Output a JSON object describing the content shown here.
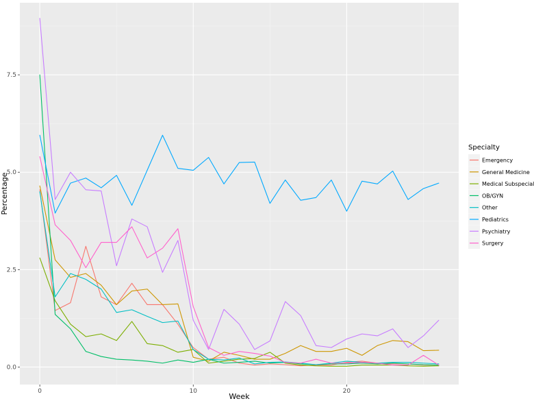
{
  "chart_data": {
    "type": "line",
    "xlabel": "Week",
    "ylabel": "Percentage",
    "xlim": [
      -1.3,
      27.3
    ],
    "ylim": [
      -0.45,
      9.35
    ],
    "x_ticks": [
      0,
      10,
      20
    ],
    "y_ticks": [
      0.0,
      2.5,
      5.0,
      7.5
    ],
    "y_tick_labels": [
      "0.0",
      "2.5",
      "5.0",
      "7.5"
    ],
    "x_tick_labels": [
      "0",
      "10",
      "20"
    ],
    "grid": true,
    "legend_title": "Specialty",
    "legend_position": "right",
    "x": [
      0,
      1,
      2,
      3,
      4,
      5,
      6,
      7,
      8,
      9,
      10,
      11,
      12,
      13,
      14,
      15,
      16,
      17,
      18,
      19,
      20,
      21,
      22,
      23,
      24,
      25,
      26
    ],
    "series": [
      {
        "name": "Emergency",
        "color": "#F8766D",
        "values": [
          4.55,
          1.45,
          1.65,
          3.1,
          1.8,
          1.6,
          2.15,
          1.6,
          1.6,
          1.1,
          0.5,
          0.2,
          0.25,
          0.1,
          0.05,
          0.08,
          0.06,
          0.03,
          0.05,
          0.05,
          0.12,
          0.15,
          0.1,
          0.08,
          0.08,
          0.05,
          0.05
        ]
      },
      {
        "name": "General Medicine",
        "color": "#CD9600",
        "values": [
          4.65,
          2.75,
          2.3,
          2.4,
          2.1,
          1.6,
          1.95,
          2.0,
          1.6,
          1.62,
          0.25,
          0.15,
          0.38,
          0.3,
          0.2,
          0.2,
          0.35,
          0.55,
          0.4,
          0.4,
          0.48,
          0.3,
          0.55,
          0.68,
          0.65,
          0.42,
          0.43
        ]
      },
      {
        "name": "Medical Subspecialty",
        "color": "#7CAE00",
        "values": [
          2.8,
          1.7,
          1.1,
          0.78,
          0.85,
          0.68,
          1.17,
          0.6,
          0.55,
          0.38,
          0.45,
          0.1,
          0.15,
          0.2,
          0.22,
          0.38,
          0.1,
          0.05,
          0.03,
          0.02,
          0.02,
          0.05,
          0.05,
          0.05,
          0.03,
          0.02,
          0.03
        ]
      },
      {
        "name": "OB/GYN",
        "color": "#00BE67",
        "values": [
          7.5,
          1.35,
          0.98,
          0.4,
          0.27,
          0.2,
          0.18,
          0.15,
          0.1,
          0.18,
          0.12,
          0.2,
          0.1,
          0.12,
          0.15,
          0.1,
          0.12,
          0.08,
          0.06,
          0.08,
          0.08,
          0.1,
          0.08,
          0.1,
          0.08,
          0.06,
          0.05
        ]
      },
      {
        "name": "Other",
        "color": "#00BFC4",
        "values": [
          4.5,
          1.8,
          2.4,
          2.25,
          2.0,
          1.4,
          1.47,
          1.3,
          1.14,
          1.18,
          0.45,
          0.2,
          0.18,
          0.23,
          0.08,
          0.12,
          0.13,
          0.1,
          0.06,
          0.1,
          0.15,
          0.12,
          0.1,
          0.12,
          0.12,
          0.1,
          0.08
        ]
      },
      {
        "name": "Pediatrics",
        "color": "#00A9FF",
        "values": [
          5.95,
          3.95,
          4.72,
          4.85,
          4.6,
          4.92,
          4.15,
          5.05,
          5.95,
          5.1,
          5.05,
          5.38,
          4.7,
          5.25,
          5.26,
          4.2,
          4.8,
          4.28,
          4.35,
          4.8,
          4.0,
          4.77,
          4.7,
          5.03,
          4.3,
          4.58,
          4.72
        ]
      },
      {
        "name": "Psychiatry",
        "color": "#C77CFF",
        "values": [
          8.95,
          4.3,
          5.0,
          4.55,
          4.52,
          2.6,
          3.8,
          3.6,
          2.43,
          3.25,
          1.2,
          0.45,
          1.48,
          1.1,
          0.45,
          0.67,
          1.68,
          1.32,
          0.55,
          0.5,
          0.72,
          0.85,
          0.8,
          0.98,
          0.5,
          0.8,
          1.2
        ]
      },
      {
        "name": "Surgery",
        "color": "#FF61CC",
        "values": [
          5.4,
          3.65,
          3.25,
          2.55,
          3.2,
          3.2,
          3.6,
          2.8,
          3.05,
          3.55,
          1.55,
          0.5,
          0.3,
          0.4,
          0.35,
          0.28,
          0.12,
          0.1,
          0.2,
          0.1,
          0.1,
          0.12,
          0.1,
          0.05,
          0.05,
          0.3,
          0.05
        ]
      }
    ]
  }
}
